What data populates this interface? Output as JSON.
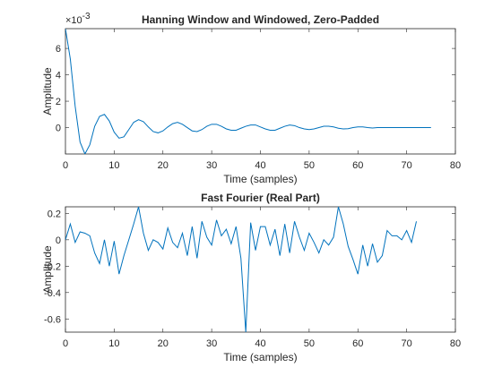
{
  "chart_data": [
    {
      "type": "line",
      "title": "Hanning Window and Windowed, Zero-Padded",
      "xlabel": "Time (samples)",
      "ylabel": "Amplitude",
      "xlim": [
        0,
        80
      ],
      "ylim": [
        -2,
        7.5
      ],
      "y_exponent_label": "×10",
      "y_exponent_value": "-3",
      "xticks": [
        0,
        10,
        20,
        30,
        40,
        50,
        60,
        70,
        80
      ],
      "yticks": [
        0,
        2,
        4,
        6
      ],
      "grid": false,
      "color": "#0072BD",
      "x": [
        0,
        1,
        2,
        3,
        4,
        5,
        6,
        7,
        8,
        9,
        10,
        11,
        12,
        13,
        14,
        15,
        16,
        17,
        18,
        19,
        20,
        21,
        22,
        23,
        24,
        25,
        26,
        27,
        28,
        29,
        30,
        31,
        32,
        33,
        34,
        35,
        36,
        37,
        38,
        39,
        40,
        41,
        42,
        43,
        44,
        45,
        46,
        47,
        48,
        49,
        50,
        51,
        52,
        53,
        54,
        55,
        56,
        57,
        58,
        59,
        60,
        61,
        62,
        63,
        64,
        65,
        66,
        67,
        68,
        69,
        70,
        71,
        72,
        73,
        74,
        75
      ],
      "y": [
        7.5,
        5.2,
        1.6,
        -1.1,
        -2.0,
        -1.3,
        0.1,
        0.85,
        1.0,
        0.5,
        -0.35,
        -0.8,
        -0.7,
        -0.15,
        0.4,
        0.6,
        0.45,
        0.05,
        -0.3,
        -0.4,
        -0.25,
        0.05,
        0.3,
        0.4,
        0.25,
        0.0,
        -0.25,
        -0.3,
        -0.15,
        0.1,
        0.25,
        0.25,
        0.1,
        -0.1,
        -0.2,
        -0.2,
        -0.05,
        0.1,
        0.2,
        0.2,
        0.05,
        -0.1,
        -0.2,
        -0.2,
        -0.05,
        0.1,
        0.2,
        0.15,
        0.0,
        -0.1,
        -0.15,
        -0.1,
        0.0,
        0.1,
        0.1,
        0.05,
        -0.05,
        -0.1,
        -0.08,
        0.0,
        0.05,
        0.05,
        0.0,
        -0.03,
        0,
        0,
        0,
        0,
        0,
        0,
        0,
        0,
        0,
        0,
        0,
        0
      ]
    },
    {
      "type": "line",
      "title": "Fast Fourier (Real Part)",
      "xlabel": "Time (samples)",
      "ylabel": "Amplitude",
      "xlim": [
        0,
        80
      ],
      "ylim": [
        -0.7,
        0.25
      ],
      "xticks": [
        0,
        10,
        20,
        30,
        40,
        50,
        60,
        70,
        80
      ],
      "yticks": [
        -0.6,
        -0.4,
        -0.2,
        0,
        0.2
      ],
      "ytick_labels": [
        "-0.6",
        "-0.4",
        "-0.2",
        "0",
        "0.2"
      ],
      "grid": false,
      "color": "#0072BD",
      "x": [
        0,
        1,
        2,
        3,
        4,
        5,
        6,
        7,
        8,
        9,
        10,
        11,
        12,
        13,
        14,
        15,
        16,
        17,
        18,
        19,
        20,
        21,
        22,
        23,
        24,
        25,
        26,
        27,
        28,
        29,
        30,
        31,
        32,
        33,
        34,
        35,
        36,
        37,
        38,
        39,
        40,
        41,
        42,
        43,
        44,
        45,
        46,
        47,
        48,
        49,
        50,
        51,
        52,
        53,
        54,
        55,
        56,
        57,
        58,
        59,
        60,
        61,
        62,
        63,
        64,
        65,
        66,
        67,
        68,
        69,
        70,
        71,
        72
      ],
      "y": [
        0.0,
        0.12,
        -0.02,
        0.06,
        0.05,
        0.03,
        -0.1,
        -0.18,
        0.0,
        -0.2,
        -0.01,
        -0.26,
        -0.12,
        0.0,
        0.12,
        0.25,
        0.05,
        -0.08,
        0.0,
        -0.02,
        -0.07,
        0.09,
        -0.02,
        -0.06,
        0.05,
        -0.12,
        0.1,
        -0.14,
        0.14,
        0.02,
        -0.04,
        0.15,
        0.03,
        0.08,
        -0.03,
        0.1,
        -0.14,
        -0.7,
        0.13,
        -0.08,
        0.1,
        0.1,
        -0.04,
        0.08,
        -0.12,
        0.12,
        -0.1,
        0.14,
        0.02,
        -0.08,
        0.05,
        -0.02,
        -0.1,
        0.0,
        -0.04,
        0.02,
        0.25,
        0.12,
        -0.05,
        -0.15,
        -0.26,
        -0.04,
        -0.2,
        -0.03,
        -0.17,
        -0.12,
        0.07,
        0.03,
        0.03,
        0.0,
        0.07,
        -0.02,
        0.14
      ]
    }
  ]
}
